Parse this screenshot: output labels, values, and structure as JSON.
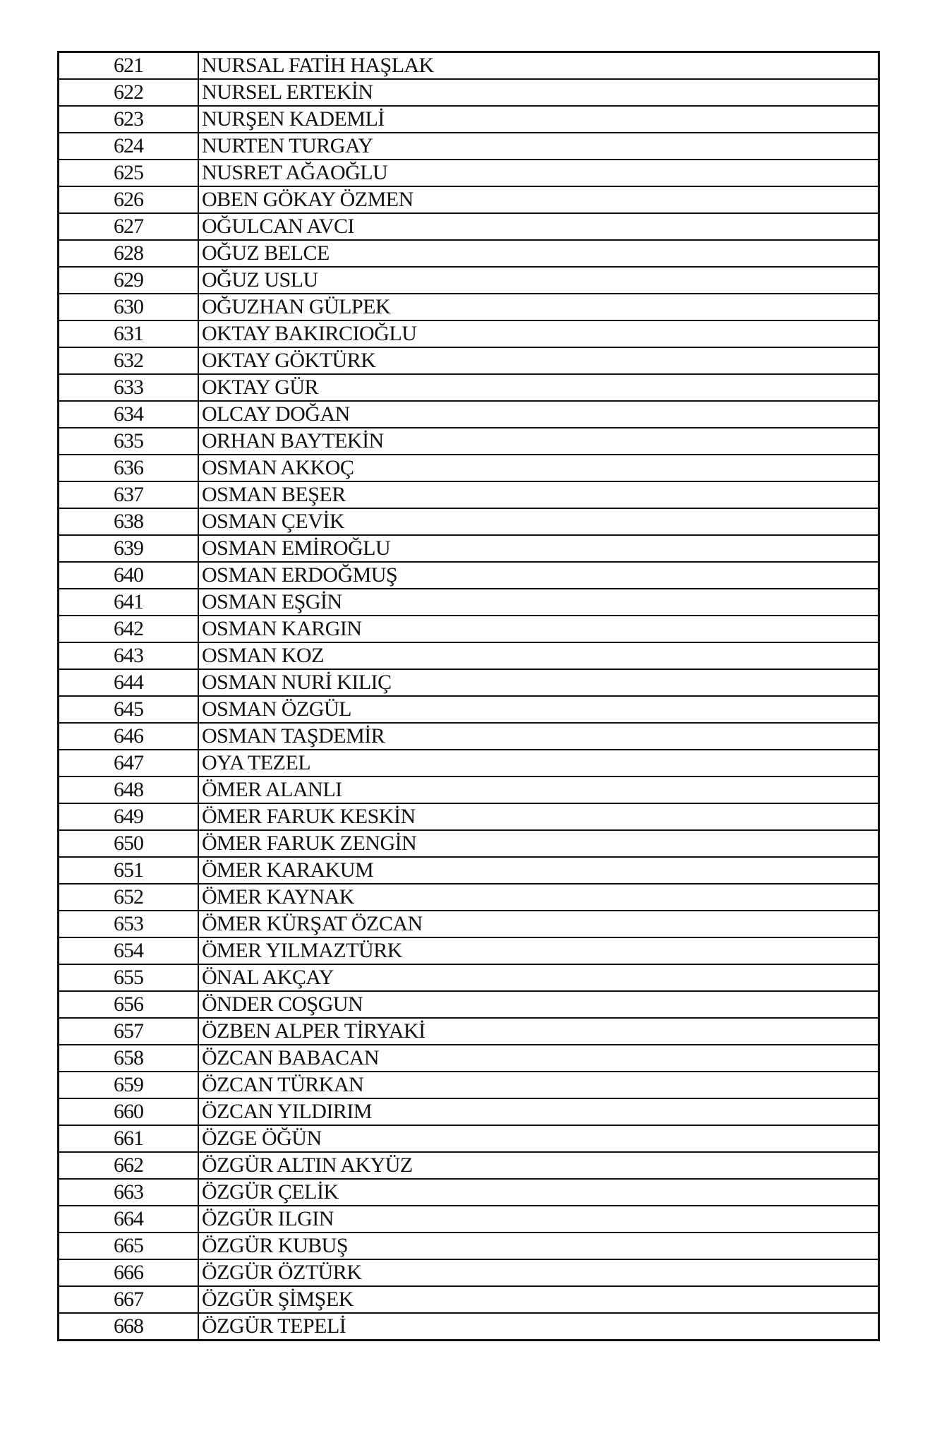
{
  "rows": [
    {
      "no": "621",
      "name": "NURSAL FATİH HAŞLAK"
    },
    {
      "no": "622",
      "name": "NURSEL ERTEKİN"
    },
    {
      "no": "623",
      "name": "NURŞEN KADEMLİ"
    },
    {
      "no": "624",
      "name": "NURTEN TURGAY"
    },
    {
      "no": "625",
      "name": "NUSRET AĞAOĞLU"
    },
    {
      "no": "626",
      "name": "OBEN GÖKAY ÖZMEN"
    },
    {
      "no": "627",
      "name": "OĞULCAN AVCI"
    },
    {
      "no": "628",
      "name": "OĞUZ BELCE"
    },
    {
      "no": "629",
      "name": "OĞUZ USLU"
    },
    {
      "no": "630",
      "name": "OĞUZHAN GÜLPEK"
    },
    {
      "no": "631",
      "name": "OKTAY BAKIRCIOĞLU"
    },
    {
      "no": "632",
      "name": "OKTAY GÖKTÜRK"
    },
    {
      "no": "633",
      "name": "OKTAY GÜR"
    },
    {
      "no": "634",
      "name": "OLCAY DOĞAN"
    },
    {
      "no": "635",
      "name": "ORHAN BAYTEKİN"
    },
    {
      "no": "636",
      "name": "OSMAN AKKOÇ"
    },
    {
      "no": "637",
      "name": "OSMAN BEŞER"
    },
    {
      "no": "638",
      "name": "OSMAN ÇEVİK"
    },
    {
      "no": "639",
      "name": "OSMAN EMİROĞLU"
    },
    {
      "no": "640",
      "name": "OSMAN ERDOĞMUŞ"
    },
    {
      "no": "641",
      "name": "OSMAN EŞGİN"
    },
    {
      "no": "642",
      "name": "OSMAN KARGIN"
    },
    {
      "no": "643",
      "name": "OSMAN KOZ"
    },
    {
      "no": "644",
      "name": "OSMAN NURİ KILIÇ"
    },
    {
      "no": "645",
      "name": "OSMAN ÖZGÜL"
    },
    {
      "no": "646",
      "name": "OSMAN TAŞDEMİR"
    },
    {
      "no": "647",
      "name": "OYA TEZEL"
    },
    {
      "no": "648",
      "name": "ÖMER ALANLI"
    },
    {
      "no": "649",
      "name": "ÖMER FARUK KESKİN"
    },
    {
      "no": "650",
      "name": "ÖMER FARUK ZENGİN"
    },
    {
      "no": "651",
      "name": "ÖMER KARAKUM"
    },
    {
      "no": "652",
      "name": "ÖMER KAYNAK"
    },
    {
      "no": "653",
      "name": "ÖMER KÜRŞAT ÖZCAN"
    },
    {
      "no": "654",
      "name": "ÖMER YILMAZTÜRK"
    },
    {
      "no": "655",
      "name": "ÖNAL AKÇAY"
    },
    {
      "no": "656",
      "name": "ÖNDER COŞGUN"
    },
    {
      "no": "657",
      "name": "ÖZBEN ALPER TİRYAKİ"
    },
    {
      "no": "658",
      "name": "ÖZCAN BABACAN"
    },
    {
      "no": "659",
      "name": "ÖZCAN TÜRKAN"
    },
    {
      "no": "660",
      "name": "ÖZCAN YILDIRIM"
    },
    {
      "no": "661",
      "name": "ÖZGE ÖĞÜN"
    },
    {
      "no": "662",
      "name": "ÖZGÜR ALTIN AKYÜZ"
    },
    {
      "no": "663",
      "name": "ÖZGÜR ÇELİK"
    },
    {
      "no": "664",
      "name": "ÖZGÜR ILGIN"
    },
    {
      "no": "665",
      "name": "ÖZGÜR KUBUŞ"
    },
    {
      "no": "666",
      "name": "ÖZGÜR ÖZTÜRK"
    },
    {
      "no": "667",
      "name": "ÖZGÜR ŞİMŞEK"
    },
    {
      "no": "668",
      "name": "ÖZGÜR TEPELİ"
    }
  ]
}
